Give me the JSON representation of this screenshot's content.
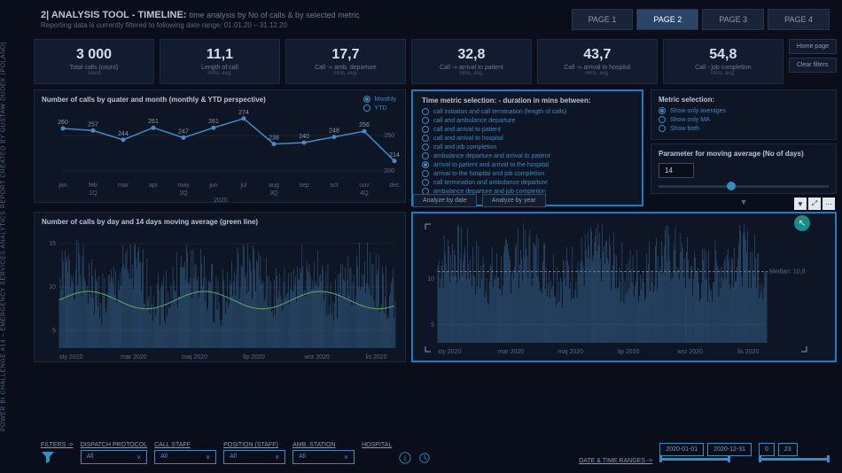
{
  "sidebar_text": "POWER BI CHALLENGE #14 – EMERGENCY SERVICES ANALYTICS  REPORT CREATED BY GUSTAW DUDEK (POLAND)",
  "header": {
    "title_num": "2|",
    "title": "ANALYSIS TOOL - TIMELINE:",
    "subtitle": "time analysis by No of calls & by selected metric",
    "subline": "Reporting data is currently filtered to following date range: 01.01.20 – 31.12.20",
    "tabs": [
      "PAGE 1",
      "PAGE 2",
      "PAGE 3",
      "PAGE 4"
    ],
    "active_tab": 1
  },
  "kpis": [
    {
      "val": "3 000",
      "label": "Total calls (count)",
      "unit": "count"
    },
    {
      "val": "11,1",
      "label": "Length of call",
      "unit": "mins, avg."
    },
    {
      "val": "17,7",
      "label": "Call -» amb. departure",
      "unit": "mins, avg."
    },
    {
      "val": "32,8",
      "label": "Call -» arrival to patient",
      "unit": "mins, avg."
    },
    {
      "val": "43,7",
      "label": "Call -» arrival to hospital",
      "unit": "mins, avg."
    },
    {
      "val": "54,8",
      "label": "Call - job completion",
      "unit": "mins, avg."
    }
  ],
  "kpi_buttons": [
    "Home page",
    "Clear filters"
  ],
  "monthly_chart": {
    "title": "Number of calls by quater and month (monthly & YTD perspective)",
    "radios": [
      "Monthly",
      "YTD"
    ],
    "radio_sel": 0,
    "months": [
      "jan",
      "feb",
      "mar",
      "apr",
      "may",
      "jun",
      "jul",
      "aug",
      "sep",
      "oct",
      "nov",
      "dec"
    ],
    "quarters": [
      "1Q",
      "2Q",
      "3Q",
      "4Q"
    ],
    "year": "2020",
    "values": [
      260,
      257,
      244,
      261,
      247,
      261,
      274,
      238,
      240,
      248,
      256,
      214
    ],
    "yticks": [
      200,
      250
    ],
    "line_color": "#4a8ac4"
  },
  "time_metric": {
    "title": "Time metric selection: - duration in mins between:",
    "options": [
      "call initiation and call termination (length of calls)",
      "call and ambulance departure",
      "call and arrival to patient",
      "call and arrival to hospital",
      "call and job completion",
      "ambulance departure and arrival to patient",
      "arrival to patient and arrival to the hospital",
      "arrival to the hospital and job completion",
      "call termination and ambulance departure",
      "ambulance departure and job completion"
    ],
    "selected": 6
  },
  "metric_sel": {
    "title": "Metric selection:",
    "options": [
      "Show only averages",
      "Show only MA",
      "Show both"
    ],
    "selected": 0
  },
  "ma_param": {
    "title": "Parameter for moving average (No of days)",
    "value": "14"
  },
  "analyze_btns": [
    "Analyze by date",
    "Analyze by year"
  ],
  "day_chart": {
    "title": "Number of calls by day and 14 days moving average (green line)",
    "yticks": [
      5,
      10,
      15
    ],
    "xlabels": [
      "sty 2020",
      "mar 2020",
      "maj 2020",
      "lip 2020",
      "wrz 2020",
      "lis 2020"
    ],
    "ma_color": "#5aaa6a",
    "bar_color": "#3a6a94"
  },
  "analyze_chart": {
    "yticks": [
      5,
      10
    ],
    "xlabels": [
      "sty 2020",
      "mar 2020",
      "maj 2020",
      "lip 2020",
      "wrz 2020",
      "lis 2020"
    ],
    "median_label": "Median: 10,8",
    "bar_color": "#3a6a94"
  },
  "filters": {
    "lead": "FILTERS ->",
    "groups": [
      {
        "label": "DISPATCH PROTOCOL",
        "val": "All"
      },
      {
        "label": "CALL STAFF",
        "val": "All"
      },
      {
        "label": "POSITION (STAFF)",
        "val": "All"
      },
      {
        "label": "AMB. STATION",
        "val": "All"
      },
      {
        "label": "HOSPITAL",
        "val": ""
      }
    ],
    "date_label": "DATE & TIME RANGES ->",
    "date_from": "2020-01-01",
    "date_to": "2020-12-31",
    "time_from": "0",
    "time_to": "23"
  }
}
